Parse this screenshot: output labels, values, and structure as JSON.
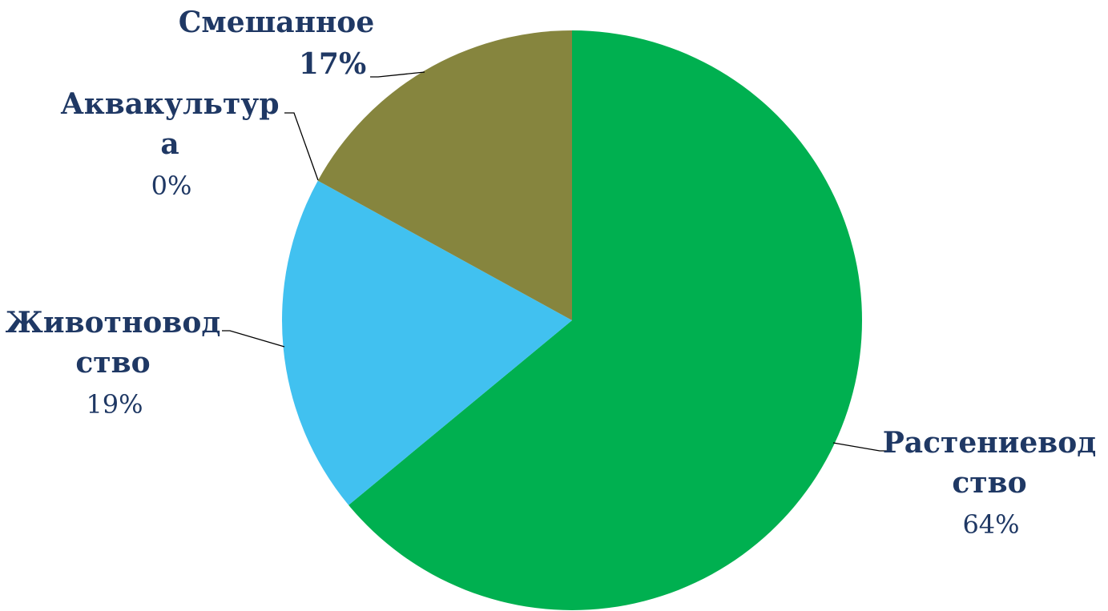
{
  "chart_data": {
    "type": "pie",
    "start_angle_deg": 0,
    "direction": "clockwise",
    "slices": [
      {
        "name_lines": [
          "Растениевод",
          "ство"
        ],
        "value": 64,
        "pct_label": "64%",
        "color": "#00b050"
      },
      {
        "name_lines": [
          "Животновод",
          "ство"
        ],
        "value": 19,
        "pct_label": "19%",
        "color": "#41c1f0"
      },
      {
        "name_lines": [
          "Аквакультур",
          "а"
        ],
        "value": 0,
        "pct_label": "0%",
        "color": "#c0c0c0"
      },
      {
        "name_lines": [
          "Смешанное"
        ],
        "value": 17,
        "pct_label": "17%",
        "color": "#86853e"
      }
    ]
  }
}
